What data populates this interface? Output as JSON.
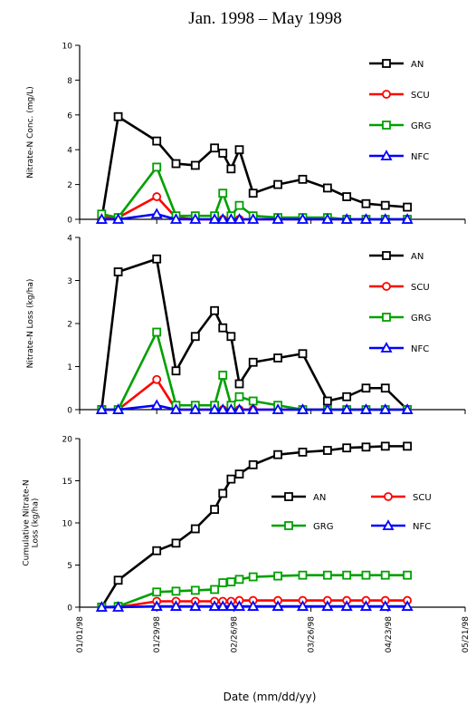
{
  "figure": {
    "title": "Jan. 1998 – May 1998",
    "xlabel": "Date (mm/dd/yy)"
  },
  "x_ticks": [
    "01/01/98",
    "01/29/98",
    "02/26/98",
    "03/26/98",
    "04/23/98",
    "05/21/98"
  ],
  "chart_data": [
    {
      "type": "line",
      "ylabel": "Nitrate-N Conc. (mg/L)",
      "ylim": [
        0,
        10
      ],
      "yticks": [
        "0",
        "2",
        "4",
        "6",
        "8",
        "10"
      ],
      "legend_placement": "right",
      "x": [
        "01/09/98",
        "01/15/98",
        "01/29/98",
        "02/05/98",
        "02/12/98",
        "02/19/98",
        "02/22/98",
        "02/25/98",
        "02/28/98",
        "03/05/98",
        "03/14/98",
        "03/23/98",
        "04/01/98",
        "04/08/98",
        "04/15/98",
        "04/22/98",
        "04/30/98",
        "05/06/98"
      ],
      "series": [
        {
          "name": "AN",
          "color": "#000000",
          "marker": "square",
          "values": [
            0,
            5.9,
            4.5,
            3.2,
            3.1,
            4.1,
            3.8,
            2.9,
            4,
            1.5,
            2.0,
            2.3,
            1.8,
            1.3,
            0.9,
            0.8,
            0.7,
            null
          ]
        },
        {
          "name": "SCU",
          "color": "#ff0000",
          "marker": "circle",
          "values": [
            0.1,
            0.1,
            1.3,
            0.1,
            0,
            0,
            0,
            0,
            0,
            0,
            0,
            0,
            0,
            0,
            0,
            0,
            0,
            null
          ]
        },
        {
          "name": "GRG",
          "color": "#00a000",
          "marker": "square",
          "values": [
            0.3,
            0.1,
            3.0,
            0.2,
            0.2,
            0.2,
            1.5,
            0.2,
            0.8,
            0.2,
            0.1,
            0.1,
            0.1,
            0,
            0,
            0,
            0,
            null
          ]
        },
        {
          "name": "NFC",
          "color": "#0000ff",
          "marker": "triangle",
          "values": [
            0,
            0,
            0.3,
            0,
            0,
            0,
            0,
            0,
            0,
            0,
            0,
            0,
            0,
            0,
            0,
            0,
            0,
            null
          ]
        }
      ]
    },
    {
      "type": "line",
      "ylabel": "Nitrate-N Loss (kg/ha)",
      "ylim": [
        0,
        4
      ],
      "yticks": [
        "0",
        "1",
        "2",
        "3",
        "4"
      ],
      "legend_placement": "right",
      "x": [
        "01/09/98",
        "01/15/98",
        "01/29/98",
        "02/05/98",
        "02/12/98",
        "02/19/98",
        "02/22/98",
        "02/25/98",
        "02/28/98",
        "03/05/98",
        "03/14/98",
        "03/23/98",
        "04/01/98",
        "04/08/98",
        "04/15/98",
        "04/22/98",
        "04/30/98",
        "05/06/98"
      ],
      "series": [
        {
          "name": "AN",
          "color": "#000000",
          "marker": "square",
          "values": [
            0,
            3.2,
            3.5,
            0.9,
            1.7,
            2.3,
            1.9,
            1.7,
            0.6,
            1.1,
            1.2,
            1.3,
            0.2,
            0.3,
            0.5,
            0.5,
            0,
            null
          ]
        },
        {
          "name": "SCU",
          "color": "#ff0000",
          "marker": "circle",
          "values": [
            0,
            0,
            0.7,
            0,
            0,
            0,
            0,
            0,
            0,
            0,
            0,
            0,
            0,
            0,
            0,
            0,
            0,
            null
          ]
        },
        {
          "name": "GRG",
          "color": "#00a000",
          "marker": "square",
          "values": [
            0,
            0,
            1.8,
            0.1,
            0.1,
            0.1,
            0.8,
            0.1,
            0.3,
            0.2,
            0.1,
            0,
            0,
            0,
            0,
            0,
            0,
            null
          ]
        },
        {
          "name": "NFC",
          "color": "#0000ff",
          "marker": "triangle",
          "values": [
            0,
            0,
            0.1,
            0,
            0,
            0,
            0,
            0,
            0,
            0,
            0,
            0,
            0,
            0,
            0,
            0,
            0,
            null
          ]
        }
      ]
    },
    {
      "type": "line",
      "ylabel": "Cumulative Nitrate-N Loss (kg/ha)",
      "ylim": [
        0,
        20
      ],
      "yticks": [
        "0",
        "5",
        "10",
        "15",
        "20"
      ],
      "legend_placement": "center-right",
      "x": [
        "01/09/98",
        "01/15/98",
        "01/29/98",
        "02/05/98",
        "02/12/98",
        "02/19/98",
        "02/22/98",
        "02/25/98",
        "02/28/98",
        "03/05/98",
        "03/14/98",
        "03/23/98",
        "04/01/98",
        "04/08/98",
        "04/15/98",
        "04/22/98",
        "04/30/98",
        "05/06/98"
      ],
      "series": [
        {
          "name": "AN",
          "color": "#000000",
          "marker": "square",
          "values": [
            0,
            3.2,
            6.7,
            7.6,
            9.3,
            11.6,
            13.5,
            15.2,
            15.8,
            16.9,
            18.1,
            18.4,
            18.6,
            18.9,
            19.0,
            19.1,
            19.1,
            null
          ]
        },
        {
          "name": "SCU",
          "color": "#ff0000",
          "marker": "circle",
          "values": [
            0,
            0,
            0.7,
            0.7,
            0.7,
            0.7,
            0.7,
            0.7,
            0.8,
            0.8,
            0.8,
            0.8,
            0.8,
            0.8,
            0.8,
            0.8,
            0.8,
            null
          ]
        },
        {
          "name": "GRG",
          "color": "#00a000",
          "marker": "square",
          "values": [
            0,
            0.1,
            1.8,
            1.9,
            2.0,
            2.1,
            2.9,
            3.0,
            3.3,
            3.6,
            3.7,
            3.8,
            3.8,
            3.8,
            3.8,
            3.8,
            3.8,
            null
          ]
        },
        {
          "name": "NFC",
          "color": "#0000ff",
          "marker": "triangle",
          "values": [
            0,
            0,
            0.1,
            0.1,
            0.1,
            0.1,
            0.1,
            0.1,
            0.1,
            0.1,
            0.1,
            0.1,
            0.1,
            0.1,
            0.1,
            0.1,
            0.1,
            null
          ]
        }
      ]
    }
  ]
}
